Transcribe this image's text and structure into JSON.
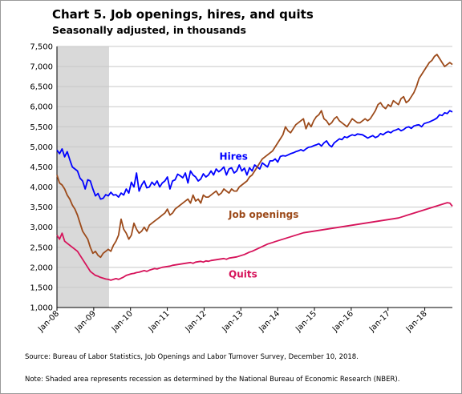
{
  "title": "Chart 5. Job openings, hires, and quits",
  "subtitle": "Seasonally adjusted, in thousands",
  "source": "Source: Bureau of Labor Statistics, Job Openings and Labor Turnover Survey, December 10, 2018.",
  "note": "Note: Shaded area represents recession as determined by the National Bureau of Economic Research (NBER).",
  "chart_data": {
    "type": "line",
    "x_ticks": [
      "Jan-08",
      "Jan-09",
      "Jan-10",
      "Jan-11",
      "Jan-12",
      "Jan-13",
      "Jan-14",
      "Jan-15",
      "Jan-16",
      "Jan-17",
      "Jan-18"
    ],
    "y_ticks": [
      "1,000",
      "1,500",
      "2,000",
      "2,500",
      "3,000",
      "3,500",
      "4,000",
      "4,500",
      "5,000",
      "5,500",
      "6,000",
      "6,500",
      "7,000",
      "7,500"
    ],
    "ylim": [
      1000,
      7500
    ],
    "x_range": [
      "2008-01",
      "2018-10"
    ],
    "grid": true,
    "recession_shading": [
      "2008-01",
      "2009-06"
    ],
    "series": [
      {
        "name": "Hires",
        "color": "#0000ff",
        "values": [
          4920,
          4830,
          4950,
          4750,
          4880,
          4680,
          4500,
          4450,
          4400,
          4220,
          4150,
          3950,
          4180,
          4150,
          3950,
          3780,
          3840,
          3700,
          3720,
          3810,
          3780,
          3870,
          3800,
          3810,
          3750,
          3850,
          3800,
          3950,
          3850,
          4120,
          4000,
          4350,
          3900,
          4050,
          4150,
          3980,
          4000,
          4120,
          4050,
          4150,
          4000,
          4100,
          4150,
          4250,
          3950,
          4150,
          4180,
          4320,
          4280,
          4230,
          4350,
          4100,
          4400,
          4300,
          4250,
          4150,
          4200,
          4330,
          4250,
          4300,
          4400,
          4300,
          4450,
          4380,
          4430,
          4500,
          4300,
          4450,
          4480,
          4350,
          4400,
          4550,
          4400,
          4470,
          4300,
          4480,
          4400,
          4550,
          4500,
          4450,
          4600,
          4550,
          4500,
          4650,
          4650,
          4700,
          4620,
          4760,
          4780,
          4770,
          4800,
          4830,
          4850,
          4880,
          4900,
          4930,
          4900,
          4950,
          4990,
          5000,
          5030,
          5050,
          5080,
          5020,
          5100,
          5150,
          5050,
          5000,
          5100,
          5150,
          5200,
          5180,
          5250,
          5230,
          5270,
          5300,
          5280,
          5320,
          5310,
          5300,
          5260,
          5220,
          5250,
          5280,
          5230,
          5260,
          5330,
          5300,
          5350,
          5380,
          5350,
          5400,
          5420,
          5450,
          5400,
          5430,
          5480,
          5500,
          5460,
          5520,
          5540,
          5550,
          5500,
          5580,
          5600,
          5620,
          5650,
          5680,
          5720,
          5800,
          5780,
          5850,
          5830,
          5900,
          5870
        ]
      },
      {
        "name": "Job openings",
        "color": "#9c4a1a",
        "values": [
          4300,
          4100,
          4050,
          3950,
          3800,
          3700,
          3550,
          3450,
          3300,
          3100,
          2900,
          2800,
          2700,
          2500,
          2350,
          2400,
          2300,
          2250,
          2350,
          2400,
          2450,
          2400,
          2550,
          2650,
          2800,
          3200,
          2950,
          2850,
          2700,
          2800,
          3100,
          2950,
          2850,
          2900,
          3000,
          2900,
          3050,
          3100,
          3150,
          3200,
          3250,
          3300,
          3350,
          3450,
          3300,
          3350,
          3450,
          3500,
          3550,
          3600,
          3650,
          3700,
          3600,
          3800,
          3650,
          3700,
          3600,
          3800,
          3750,
          3750,
          3800,
          3850,
          3900,
          3800,
          3850,
          3950,
          3900,
          3850,
          3950,
          3900,
          3900,
          4000,
          4050,
          4100,
          4150,
          4250,
          4300,
          4400,
          4500,
          4600,
          4700,
          4750,
          4800,
          4850,
          4900,
          5000,
          5100,
          5200,
          5300,
          5500,
          5400,
          5350,
          5450,
          5550,
          5600,
          5650,
          5700,
          5450,
          5600,
          5500,
          5650,
          5750,
          5800,
          5900,
          5700,
          5650,
          5550,
          5600,
          5700,
          5750,
          5650,
          5600,
          5550,
          5500,
          5600,
          5700,
          5650,
          5600,
          5600,
          5650,
          5700,
          5650,
          5700,
          5800,
          5900,
          6050,
          6100,
          6000,
          5950,
          6050,
          6000,
          6150,
          6100,
          6050,
          6200,
          6250,
          6100,
          6150,
          6250,
          6350,
          6500,
          6700,
          6800,
          6900,
          7000,
          7100,
          7150,
          7250,
          7300,
          7200,
          7100,
          7000,
          7050,
          7100,
          7050
        ]
      },
      {
        "name": "Quits",
        "color": "#d6135a",
        "values": [
          2800,
          2700,
          2850,
          2650,
          2600,
          2550,
          2500,
          2450,
          2400,
          2300,
          2200,
          2100,
          2000,
          1900,
          1850,
          1800,
          1780,
          1750,
          1730,
          1710,
          1700,
          1680,
          1700,
          1720,
          1700,
          1730,
          1760,
          1800,
          1820,
          1840,
          1850,
          1870,
          1880,
          1900,
          1920,
          1900,
          1930,
          1950,
          1970,
          1960,
          1980,
          2000,
          2010,
          2020,
          2030,
          2050,
          2060,
          2070,
          2080,
          2090,
          2100,
          2110,
          2120,
          2100,
          2130,
          2140,
          2150,
          2130,
          2160,
          2150,
          2170,
          2180,
          2190,
          2200,
          2210,
          2220,
          2200,
          2230,
          2240,
          2250,
          2260,
          2280,
          2300,
          2320,
          2350,
          2380,
          2400,
          2430,
          2460,
          2490,
          2520,
          2550,
          2580,
          2600,
          2620,
          2640,
          2660,
          2680,
          2700,
          2720,
          2740,
          2760,
          2780,
          2800,
          2820,
          2840,
          2860,
          2870,
          2880,
          2890,
          2900,
          2910,
          2920,
          2930,
          2940,
          2950,
          2960,
          2970,
          2980,
          2990,
          3000,
          3010,
          3020,
          3030,
          3040,
          3050,
          3060,
          3070,
          3080,
          3090,
          3100,
          3110,
          3120,
          3130,
          3140,
          3150,
          3160,
          3170,
          3180,
          3190,
          3200,
          3210,
          3220,
          3230,
          3250,
          3270,
          3290,
          3310,
          3330,
          3350,
          3370,
          3390,
          3410,
          3430,
          3450,
          3470,
          3490,
          3510,
          3530,
          3550,
          3570,
          3590,
          3610,
          3600,
          3520
        ]
      }
    ]
  }
}
